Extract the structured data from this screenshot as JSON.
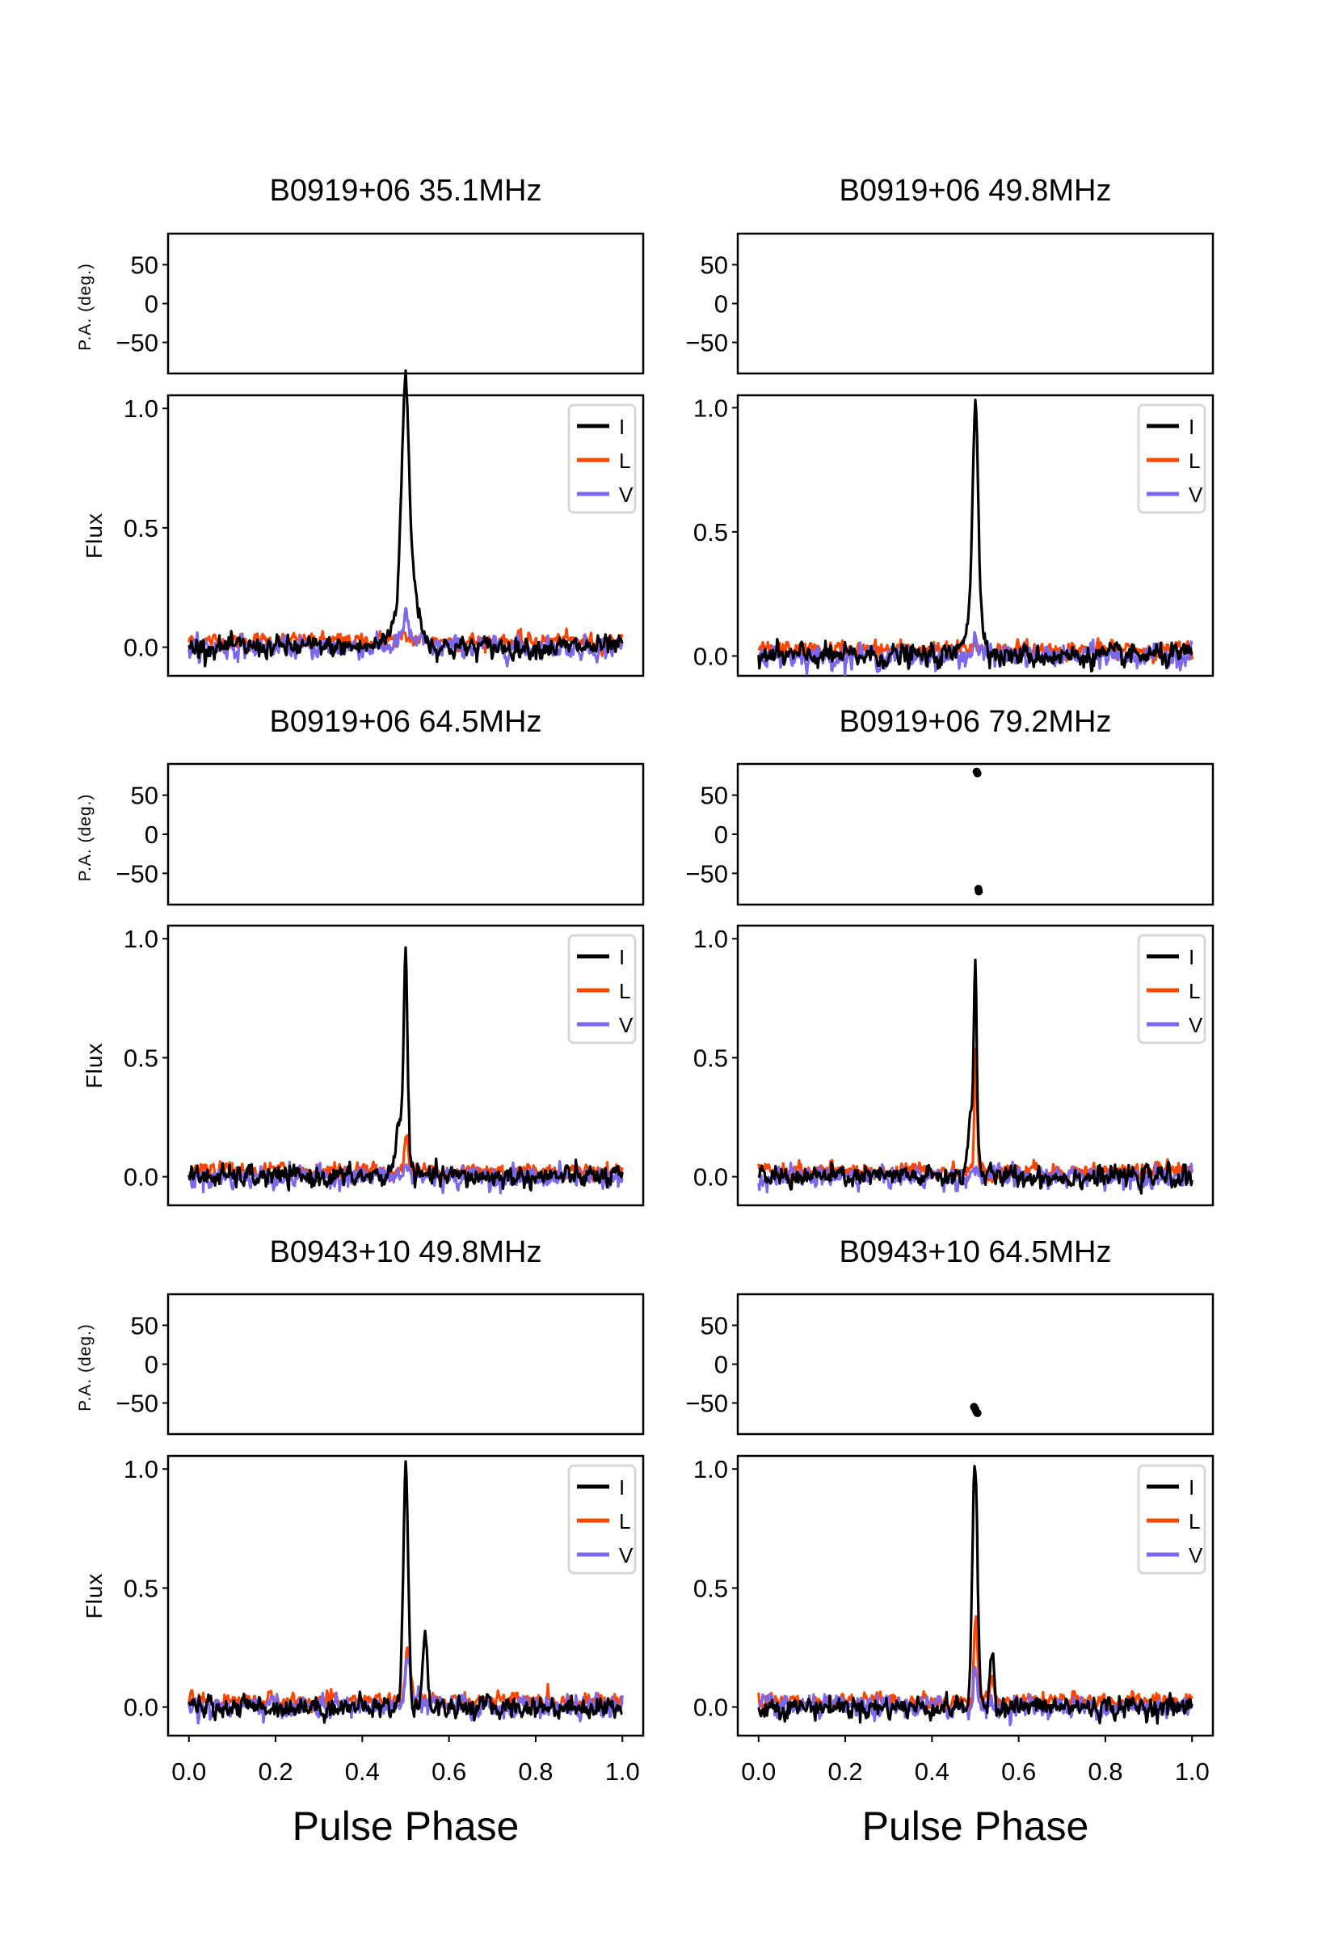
{
  "chart_data": {
    "type": "line",
    "xlabel": "Pulse Phase",
    "xlim": [
      0,
      1
    ],
    "xticks": [
      "0.0",
      "0.2",
      "0.4",
      "0.6",
      "0.8",
      "1.0"
    ],
    "pa_ylabel": "P.A. (deg.)",
    "pa_yticks": [
      "50",
      "0",
      "−50"
    ],
    "pa_ylim": [
      -90,
      90
    ],
    "flux_ylabel": "Flux",
    "flux_yticks": [
      "0.0",
      "0.5",
      "1.0"
    ],
    "legend": {
      "placement": "top-right",
      "entries": [
        {
          "label": "I",
          "color": "#000000"
        },
        {
          "label": "L",
          "color": "#ff4500"
        },
        {
          "label": "V",
          "color": "#7b68ee"
        }
      ]
    },
    "noise_rms": {
      "I": 0.02,
      "L": 0.015,
      "V": 0.02
    },
    "L_baseline_offset": 0.025,
    "panels": [
      {
        "title": "B0919+06 35.1MHz",
        "flux_ylim": [
          -0.12,
          1.055
        ],
        "pa_points": [],
        "I": [
          [
            0.499,
            0.008,
            0.8
          ],
          [
            0.506,
            0.02,
            0.28
          ],
          [
            0.49,
            0.03,
            0.06
          ]
        ],
        "L": [
          [
            0.5,
            0.03,
            0.01
          ]
        ],
        "V": [
          [
            0.5,
            0.006,
            0.08
          ],
          [
            0.505,
            0.02,
            0.04
          ]
        ]
      },
      {
        "title": "B0919+06 49.8MHz",
        "flux_ylim": [
          -0.08,
          1.05
        ],
        "pa_points": [],
        "I": [
          [
            0.5,
            0.006,
            0.8
          ],
          [
            0.498,
            0.018,
            0.22
          ]
        ],
        "L": [
          [
            0.5,
            0.005,
            0.03
          ]
        ],
        "V": [
          [
            0.5,
            0.005,
            0.08
          ]
        ]
      },
      {
        "title": "B0919+06 64.5MHz",
        "flux_ylim": [
          -0.12,
          1.055
        ],
        "pa_points": [],
        "I": [
          [
            0.5,
            0.004,
            0.72
          ],
          [
            0.492,
            0.012,
            0.28
          ]
        ],
        "L": [
          [
            0.502,
            0.004,
            0.16
          ]
        ],
        "V": [
          [
            0.5,
            0.004,
            0.05
          ]
        ]
      },
      {
        "title": "B0919+06 79.2MHz",
        "flux_ylim": [
          -0.12,
          1.055
        ],
        "pa_points": [
          [
            0.503,
            80
          ],
          [
            0.505,
            78
          ],
          [
            0.507,
            -70
          ],
          [
            0.508,
            -73
          ]
        ],
        "I": [
          [
            0.5,
            0.003,
            0.72
          ],
          [
            0.494,
            0.01,
            0.28
          ]
        ],
        "L": [
          [
            0.501,
            0.003,
            0.52
          ]
        ],
        "V": [
          [
            0.5,
            0.004,
            0.06
          ]
        ]
      },
      {
        "title": "B0943+10 49.8MHz",
        "flux_ylim": [
          -0.12,
          1.055
        ],
        "pa_points": [],
        "I": [
          [
            0.5,
            0.006,
            1.0
          ],
          [
            0.545,
            0.005,
            0.33
          ]
        ],
        "L": [
          [
            0.505,
            0.006,
            0.2
          ]
        ],
        "V": [
          [
            0.505,
            0.006,
            0.2
          ],
          [
            0.53,
            0.004,
            0.05
          ]
        ]
      },
      {
        "title": "B0943+10 64.5MHz",
        "flux_ylim": [
          -0.12,
          1.055
        ],
        "pa_points": [
          [
            0.497,
            -55
          ],
          [
            0.5,
            -58
          ],
          [
            0.503,
            -62
          ],
          [
            0.505,
            -63
          ]
        ],
        "I": [
          [
            0.499,
            0.006,
            1.0
          ],
          [
            0.538,
            0.005,
            0.25
          ]
        ],
        "L": [
          [
            0.501,
            0.004,
            0.36
          ],
          [
            0.538,
            0.004,
            0.1
          ]
        ],
        "V": [
          [
            0.501,
            0.004,
            0.2
          ]
        ]
      }
    ]
  }
}
